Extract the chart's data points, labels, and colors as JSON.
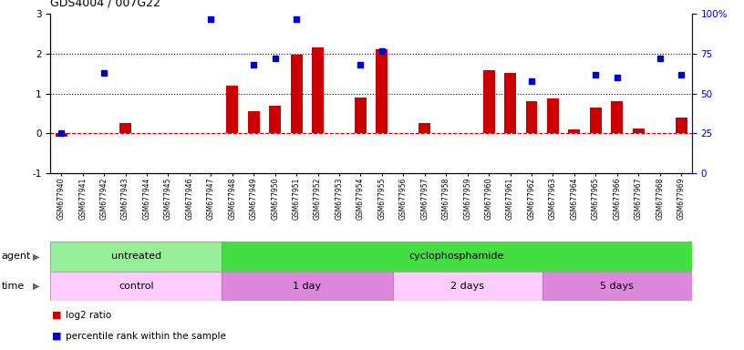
{
  "title": "GDS4004 / 007G22",
  "samples": [
    "GSM677940",
    "GSM677941",
    "GSM677942",
    "GSM677943",
    "GSM677944",
    "GSM677945",
    "GSM677946",
    "GSM677947",
    "GSM677948",
    "GSM677949",
    "GSM677950",
    "GSM677951",
    "GSM677952",
    "GSM677953",
    "GSM677954",
    "GSM677955",
    "GSM677956",
    "GSM677957",
    "GSM677958",
    "GSM677959",
    "GSM677960",
    "GSM677961",
    "GSM677962",
    "GSM677963",
    "GSM677964",
    "GSM677965",
    "GSM677966",
    "GSM677967",
    "GSM677968",
    "GSM677969"
  ],
  "log2_ratio": [
    -0.08,
    0.0,
    0.0,
    0.27,
    0.0,
    0.0,
    0.0,
    0.0,
    1.2,
    0.55,
    0.7,
    1.98,
    2.15,
    0.0,
    0.9,
    2.12,
    0.0,
    0.27,
    0.0,
    0.0,
    1.58,
    1.52,
    0.82,
    0.88,
    0.1,
    0.65,
    0.82,
    0.12,
    0.0,
    0.4
  ],
  "percentile_rank": [
    25,
    0,
    63,
    0,
    0,
    0,
    0,
    97,
    0,
    68,
    72,
    97,
    0,
    0,
    68,
    77,
    0,
    0,
    0,
    0,
    0,
    0,
    58,
    0,
    0,
    62,
    60,
    0,
    72,
    62
  ],
  "agent_groups": [
    {
      "label": "untreated",
      "start": 0,
      "end": 7,
      "color": "#99EE99"
    },
    {
      "label": "cyclophosphamide",
      "start": 8,
      "end": 29,
      "color": "#44DD44"
    }
  ],
  "time_groups": [
    {
      "label": "control",
      "start": 0,
      "end": 7,
      "color": "#FFCCFF"
    },
    {
      "label": "1 day",
      "start": 8,
      "end": 15,
      "color": "#DD88DD"
    },
    {
      "label": "2 days",
      "start": 16,
      "end": 22,
      "color": "#FFCCFF"
    },
    {
      "label": "5 days",
      "start": 23,
      "end": 29,
      "color": "#DD88DD"
    }
  ],
  "bar_color": "#CC0000",
  "dot_color": "#0000CC",
  "dashed_line_color": "#CC0000",
  "dotted_line_color": "#000000",
  "ylim_left": [
    -1,
    3
  ],
  "ylim_right": [
    0,
    100
  ],
  "yticks_left": [
    -1,
    0,
    1,
    2,
    3
  ],
  "yticks_right": [
    0,
    25,
    50,
    75,
    100
  ],
  "background_color": "#FFFFFF"
}
